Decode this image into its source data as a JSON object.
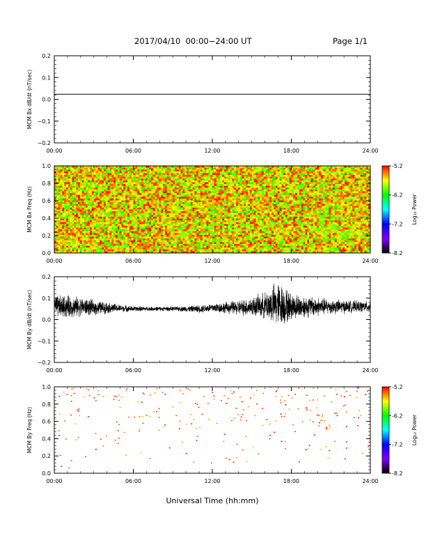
{
  "header": {
    "title": "2017/04/10  00:00−24:00 UT",
    "page": "Page 1/1"
  },
  "xlabel": "Universal Time (hh:mm)",
  "x_tick_labels": [
    "00:00",
    "06:00",
    "12:00",
    "18:00",
    "24:00"
  ],
  "colorbar": {
    "label": "Log₁₀ Power",
    "tick_labels": [
      "-5.2",
      "-6.2",
      "-7.2",
      "-8.2"
    ],
    "stops": [
      "#ff0000",
      "#ffff00",
      "#00ff00",
      "#00ffff",
      "#0000ff",
      "#7f00ff",
      "#000000"
    ]
  },
  "chart_data": [
    {
      "type": "line",
      "ylabel": "MCM Bx dB/dt (nT/sec)",
      "y_tick_labels": [
        "0.2",
        "0.1",
        "0.0",
        "−0.1",
        "−0.2"
      ],
      "xlim": [
        0,
        24
      ],
      "ylim": [
        -0.2,
        0.2
      ],
      "series": [
        {
          "x": [
            0,
            24
          ],
          "y": [
            0.023,
            0.023
          ]
        }
      ]
    },
    {
      "type": "heatmap",
      "ylabel": "MCM Bx Freq (Hz)",
      "y_tick_labels": [
        "1.0",
        "0.8",
        "0.6",
        "0.4",
        "0.2",
        "0.0"
      ],
      "xlim": [
        0,
        24
      ],
      "ylim": [
        0,
        1.0
      ],
      "zlim": [
        -8.2,
        -5.2
      ],
      "description_values": {
        "typical_log_power_min": -6.0,
        "typical_log_power_max": -5.2
      }
    },
    {
      "type": "line",
      "ylabel": "MCM By dB/dt (nT/sec)",
      "y_tick_labels": [
        "0.2",
        "0.1",
        "0.0",
        "−0.1",
        "−0.2"
      ],
      "xlim": [
        0,
        24
      ],
      "ylim": [
        -0.2,
        0.2
      ],
      "series": [
        {
          "x": [
            0,
            1,
            2,
            3,
            4,
            5,
            6,
            7,
            8,
            9,
            10,
            11,
            12,
            13,
            14,
            15,
            16,
            16.5,
            17,
            17.5,
            18,
            19,
            20,
            21,
            22,
            23,
            24
          ],
          "center": [
            0.06,
            0.06,
            0.06,
            0.055,
            0.055,
            0.052,
            0.05,
            0.05,
            0.05,
            0.05,
            0.05,
            0.05,
            0.055,
            0.055,
            0.055,
            0.06,
            0.065,
            0.07,
            0.07,
            0.065,
            0.06,
            0.06,
            0.06,
            0.06,
            0.06,
            0.06,
            0.06
          ],
          "amplitude": [
            0.06,
            0.06,
            0.05,
            0.04,
            0.03,
            0.02,
            0.015,
            0.012,
            0.012,
            0.012,
            0.015,
            0.02,
            0.025,
            0.03,
            0.04,
            0.05,
            0.07,
            0.1,
            0.12,
            0.1,
            0.07,
            0.06,
            0.05,
            0.04,
            0.035,
            0.03,
            0.03
          ]
        }
      ]
    },
    {
      "type": "heatmap",
      "ylabel": "MCM By Freq (Hz)",
      "y_tick_labels": [
        "1.0",
        "0.8",
        "0.6",
        "0.4",
        "0.2",
        "0.0"
      ],
      "xlim": [
        0,
        24
      ],
      "ylim": [
        0,
        1.0
      ],
      "zlim": [
        -8.2,
        -5.2
      ],
      "description_values": {
        "sparse": true,
        "dominant_log_power": -5.2,
        "freq_concentration": [
          0.6,
          1.0
        ]
      }
    }
  ]
}
